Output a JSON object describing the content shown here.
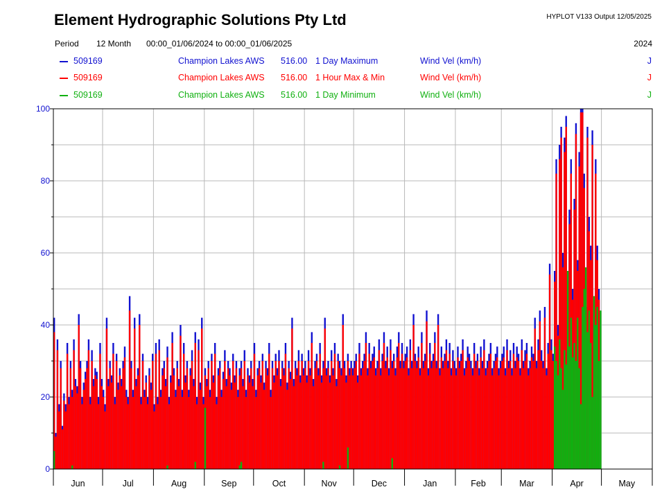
{
  "header": {
    "company": "Element Hydrographic Solutions Pty Ltd",
    "version": "HYPLOT V133  Output 12/05/2025",
    "period_label": "Period",
    "period_value": "12 Month",
    "period_range": "00:00_01/06/2024 to 00:00_01/06/2025",
    "year": "2024"
  },
  "legend": [
    {
      "site": "509169",
      "name": "Champion Lakes AWS",
      "var": "516.00",
      "stat": "1 Day Maximum",
      "param": "Wind Vel (km/h)",
      "flag": "J",
      "color": "#1010d0"
    },
    {
      "site": "509169",
      "name": "Champion Lakes AWS",
      "var": "516.00",
      "stat": "1 Hour Max & Min",
      "param": "Wind Vel (km/h)",
      "flag": "J",
      "color": "#ff0000"
    },
    {
      "site": "509169",
      "name": "Champion Lakes AWS",
      "var": "516.00",
      "stat": "1 Day Minimum",
      "param": "Wind Vel (km/h)",
      "flag": "J",
      "color": "#10b010"
    }
  ],
  "chart_data": {
    "type": "bar",
    "ylim": [
      0,
      100
    ],
    "yticks": [
      "0",
      "20",
      "40",
      "60",
      "80",
      "100"
    ],
    "months": [
      "Jun",
      "Jul",
      "Aug",
      "Sep",
      "Oct",
      "Nov",
      "Dec",
      "Jan",
      "Feb",
      "Mar",
      "Apr",
      "May"
    ],
    "month_days": [
      30,
      31,
      31,
      30,
      31,
      30,
      31,
      31,
      28,
      31,
      30,
      31
    ],
    "grid": true,
    "series": [
      {
        "name": "1 Day Maximum",
        "color": "#1010d0",
        "values": [
          42,
          10,
          36,
          18,
          30,
          12,
          21,
          18,
          35,
          20,
          30,
          22,
          36,
          25,
          23,
          43,
          30,
          20,
          24,
          27,
          30,
          36,
          20,
          33,
          25,
          28,
          27,
          20,
          35,
          25,
          22,
          18,
          42,
          25,
          30,
          26,
          35,
          20,
          32,
          24,
          28,
          25,
          30,
          34,
          22,
          20,
          48,
          30,
          22,
          42,
          25,
          28,
          43,
          20,
          32,
          22,
          26,
          20,
          28,
          24,
          32,
          18,
          35,
          20,
          36,
          22,
          28,
          30,
          25,
          34,
          20,
          26,
          38,
          28,
          22,
          30,
          25,
          40,
          22,
          35,
          26,
          30,
          22,
          28,
          33,
          25,
          38,
          20,
          36,
          24,
          42,
          20,
          28,
          25,
          30,
          22,
          32,
          26,
          35,
          20,
          28,
          30,
          22,
          27,
          33,
          25,
          30,
          28,
          24,
          32,
          26,
          30,
          22,
          28,
          30,
          25,
          33,
          22,
          28,
          26,
          30,
          25,
          35,
          22,
          28,
          30,
          26,
          32,
          24,
          30,
          28,
          35,
          22,
          30,
          26,
          32,
          28,
          33,
          25,
          30,
          28,
          35,
          24,
          30,
          27,
          42,
          25,
          30,
          28,
          33,
          26,
          32,
          28,
          30,
          26,
          33,
          28,
          38,
          25,
          30,
          32,
          28,
          35,
          26,
          30,
          42,
          28,
          30,
          26,
          33,
          28,
          35,
          25,
          32,
          30,
          28,
          43,
          30,
          26,
          32,
          28,
          30,
          28,
          30,
          32,
          26,
          35,
          28,
          30,
          32,
          38,
          28,
          35,
          30,
          32,
          34,
          28,
          30,
          36,
          28,
          32,
          38,
          30,
          34,
          28,
          36,
          30,
          32,
          28,
          34,
          38,
          30,
          35,
          30,
          32,
          34,
          28,
          36,
          30,
          43,
          32,
          30,
          34,
          28,
          38,
          30,
          32,
          44,
          28,
          35,
          30,
          32,
          38,
          30,
          43,
          28,
          34,
          30,
          32,
          36,
          30,
          35,
          28,
          33,
          30,
          28,
          34,
          30,
          32,
          36,
          28,
          30,
          34,
          32,
          30,
          28,
          35,
          30,
          32,
          28,
          34,
          30,
          36,
          28,
          30,
          32,
          35,
          28,
          30,
          32,
          34,
          28,
          30,
          32,
          34,
          28,
          36,
          30,
          33,
          28,
          35,
          30,
          34,
          32,
          28,
          36,
          30,
          33,
          35,
          28,
          30,
          34,
          32,
          42,
          30,
          36,
          44,
          33,
          30,
          45,
          28,
          35,
          57,
          36,
          32,
          55,
          86,
          40,
          90,
          95,
          60,
          92,
          98,
          55,
          72,
          86,
          50,
          75,
          96,
          58,
          88,
          100,
          100,
          82,
          45,
          95,
          70,
          62,
          94,
          40,
          86,
          62,
          50,
          null,
          null,
          null,
          null,
          null,
          null,
          null,
          null,
          null,
          null,
          null,
          null,
          null,
          null,
          null,
          null,
          null,
          null,
          null,
          null,
          null,
          null,
          null,
          null,
          null,
          null,
          null,
          null,
          null,
          null,
          null
        ]
      },
      {
        "name": "1 Hour Max & Min",
        "color": "#ff0000",
        "values": [
          38,
          9,
          33,
          16,
          28,
          11,
          19,
          16,
          32,
          18,
          28,
          20,
          33,
          23,
          21,
          40,
          28,
          18,
          22,
          25,
          28,
          33,
          18,
          30,
          23,
          26,
          25,
          18,
          32,
          23,
          20,
          16,
          39,
          23,
          28,
          24,
          32,
          18,
          30,
          22,
          26,
          23,
          28,
          31,
          20,
          18,
          44,
          28,
          20,
          39,
          23,
          26,
          40,
          18,
          30,
          20,
          24,
          18,
          26,
          22,
          30,
          16,
          32,
          18,
          33,
          20,
          26,
          28,
          23,
          31,
          18,
          24,
          35,
          26,
          20,
          28,
          23,
          37,
          20,
          32,
          24,
          28,
          20,
          26,
          30,
          23,
          35,
          18,
          33,
          22,
          39,
          18,
          26,
          23,
          28,
          20,
          30,
          24,
          32,
          18,
          26,
          28,
          20,
          25,
          30,
          23,
          28,
          26,
          22,
          30,
          24,
          28,
          20,
          26,
          28,
          23,
          30,
          20,
          26,
          24,
          28,
          23,
          32,
          20,
          26,
          28,
          24,
          30,
          22,
          28,
          26,
          32,
          20,
          28,
          24,
          30,
          26,
          30,
          23,
          28,
          26,
          32,
          22,
          28,
          25,
          39,
          23,
          28,
          26,
          30,
          24,
          30,
          26,
          28,
          24,
          30,
          26,
          35,
          23,
          28,
          30,
          26,
          32,
          24,
          28,
          39,
          26,
          28,
          24,
          30,
          26,
          32,
          23,
          30,
          28,
          26,
          40,
          28,
          24,
          30,
          26,
          28,
          26,
          28,
          30,
          24,
          32,
          26,
          28,
          30,
          35,
          26,
          32,
          28,
          30,
          31,
          26,
          28,
          33,
          26,
          30,
          35,
          28,
          31,
          26,
          33,
          28,
          30,
          26,
          31,
          35,
          28,
          32,
          28,
          30,
          31,
          26,
          33,
          28,
          40,
          30,
          28,
          31,
          26,
          35,
          28,
          30,
          41,
          26,
          32,
          28,
          30,
          35,
          28,
          40,
          26,
          31,
          28,
          30,
          33,
          28,
          32,
          26,
          30,
          28,
          26,
          31,
          28,
          30,
          33,
          26,
          28,
          31,
          30,
          28,
          26,
          32,
          28,
          30,
          26,
          31,
          28,
          33,
          26,
          28,
          30,
          32,
          26,
          28,
          30,
          31,
          26,
          28,
          30,
          31,
          26,
          33,
          28,
          30,
          26,
          32,
          28,
          31,
          30,
          26,
          33,
          28,
          30,
          32,
          26,
          28,
          31,
          30,
          39,
          28,
          33,
          41,
          30,
          28,
          42,
          26,
          32,
          54,
          33,
          30,
          52,
          82,
          37,
          86,
          92,
          56,
          88,
          95,
          52,
          68,
          82,
          47,
          72,
          93,
          55,
          84,
          99,
          99,
          78,
          42,
          92,
          66,
          58,
          90,
          37,
          82,
          58,
          47,
          null,
          null,
          null,
          null,
          null,
          null,
          null,
          null,
          null,
          null,
          null,
          null,
          null,
          null,
          null,
          null,
          null,
          null,
          null,
          null,
          null,
          null,
          null,
          null,
          null,
          null,
          null,
          null,
          null,
          null,
          null
        ]
      },
      {
        "name": "1 Day Minimum",
        "color": "#10b010",
        "values": [
          5,
          0,
          0,
          0,
          0,
          0,
          0,
          0,
          0,
          0,
          0,
          1,
          0,
          0,
          0,
          0,
          0,
          0,
          0,
          0,
          0,
          0,
          0,
          0,
          0,
          0,
          0,
          0,
          0,
          0,
          0,
          0,
          0,
          0,
          0,
          0,
          0,
          0,
          0,
          0,
          0,
          0,
          0,
          0,
          0,
          0,
          0,
          0,
          0,
          0,
          0,
          0,
          0,
          0,
          0,
          0,
          0,
          0,
          0,
          0,
          0,
          0,
          0,
          0,
          0,
          0,
          0,
          0,
          0,
          1,
          0,
          0,
          0,
          0,
          0,
          0,
          0,
          0,
          0,
          0,
          0,
          0,
          0,
          0,
          0,
          0,
          2,
          0,
          0,
          0,
          0,
          0,
          17,
          0,
          0,
          0,
          0,
          0,
          0,
          0,
          0,
          0,
          0,
          0,
          0,
          0,
          0,
          0,
          0,
          0,
          0,
          0,
          0,
          1,
          2,
          0,
          0,
          0,
          0,
          0,
          0,
          0,
          0,
          0,
          0,
          0,
          0,
          0,
          0,
          0,
          0,
          0,
          0,
          0,
          0,
          0,
          0,
          0,
          0,
          0,
          0,
          0,
          0,
          0,
          0,
          0,
          0,
          0,
          0,
          0,
          0,
          0,
          0,
          0,
          0,
          0,
          0,
          0,
          0,
          0,
          0,
          0,
          0,
          0,
          2,
          0,
          0,
          0,
          0,
          0,
          0,
          0,
          0,
          0,
          1,
          0,
          0,
          0,
          0,
          6,
          0,
          0,
          0,
          0,
          0,
          0,
          0,
          0,
          0,
          0,
          0,
          0,
          0,
          0,
          0,
          0,
          0,
          0,
          0,
          0,
          0,
          0,
          0,
          0,
          0,
          0,
          3,
          0,
          0,
          0,
          0,
          0,
          0,
          0,
          0,
          0,
          0,
          0,
          0,
          0,
          0,
          0,
          0,
          0,
          0,
          0,
          0,
          0,
          0,
          0,
          0,
          0,
          0,
          0,
          0,
          0,
          0,
          0,
          0,
          0,
          0,
          0,
          0,
          0,
          0,
          0,
          0,
          0,
          0,
          0,
          0,
          0,
          0,
          0,
          0,
          0,
          0,
          0,
          0,
          0,
          0,
          0,
          0,
          0,
          0,
          0,
          0,
          0,
          0,
          0,
          0,
          0,
          0,
          0,
          0,
          0,
          0,
          0,
          0,
          0,
          0,
          0,
          0,
          0,
          0,
          0,
          0,
          0,
          0,
          0,
          0,
          0,
          0,
          0,
          0,
          0,
          0,
          0,
          0,
          0,
          0,
          0,
          0,
          0,
          0,
          34,
          30,
          26,
          36,
          28,
          22,
          33,
          29,
          55,
          34,
          42,
          31,
          35,
          30,
          42,
          28,
          18,
          45,
          50,
          56,
          38,
          44,
          35,
          20,
          48,
          40,
          45,
          30,
          44,
          null,
          null,
          null,
          null,
          null,
          null,
          null,
          null,
          null,
          null,
          null,
          null,
          null,
          null,
          null,
          null,
          null,
          null,
          null,
          null,
          null,
          null,
          null,
          null,
          null,
          null,
          null,
          null,
          null,
          null,
          null
        ]
      }
    ]
  }
}
